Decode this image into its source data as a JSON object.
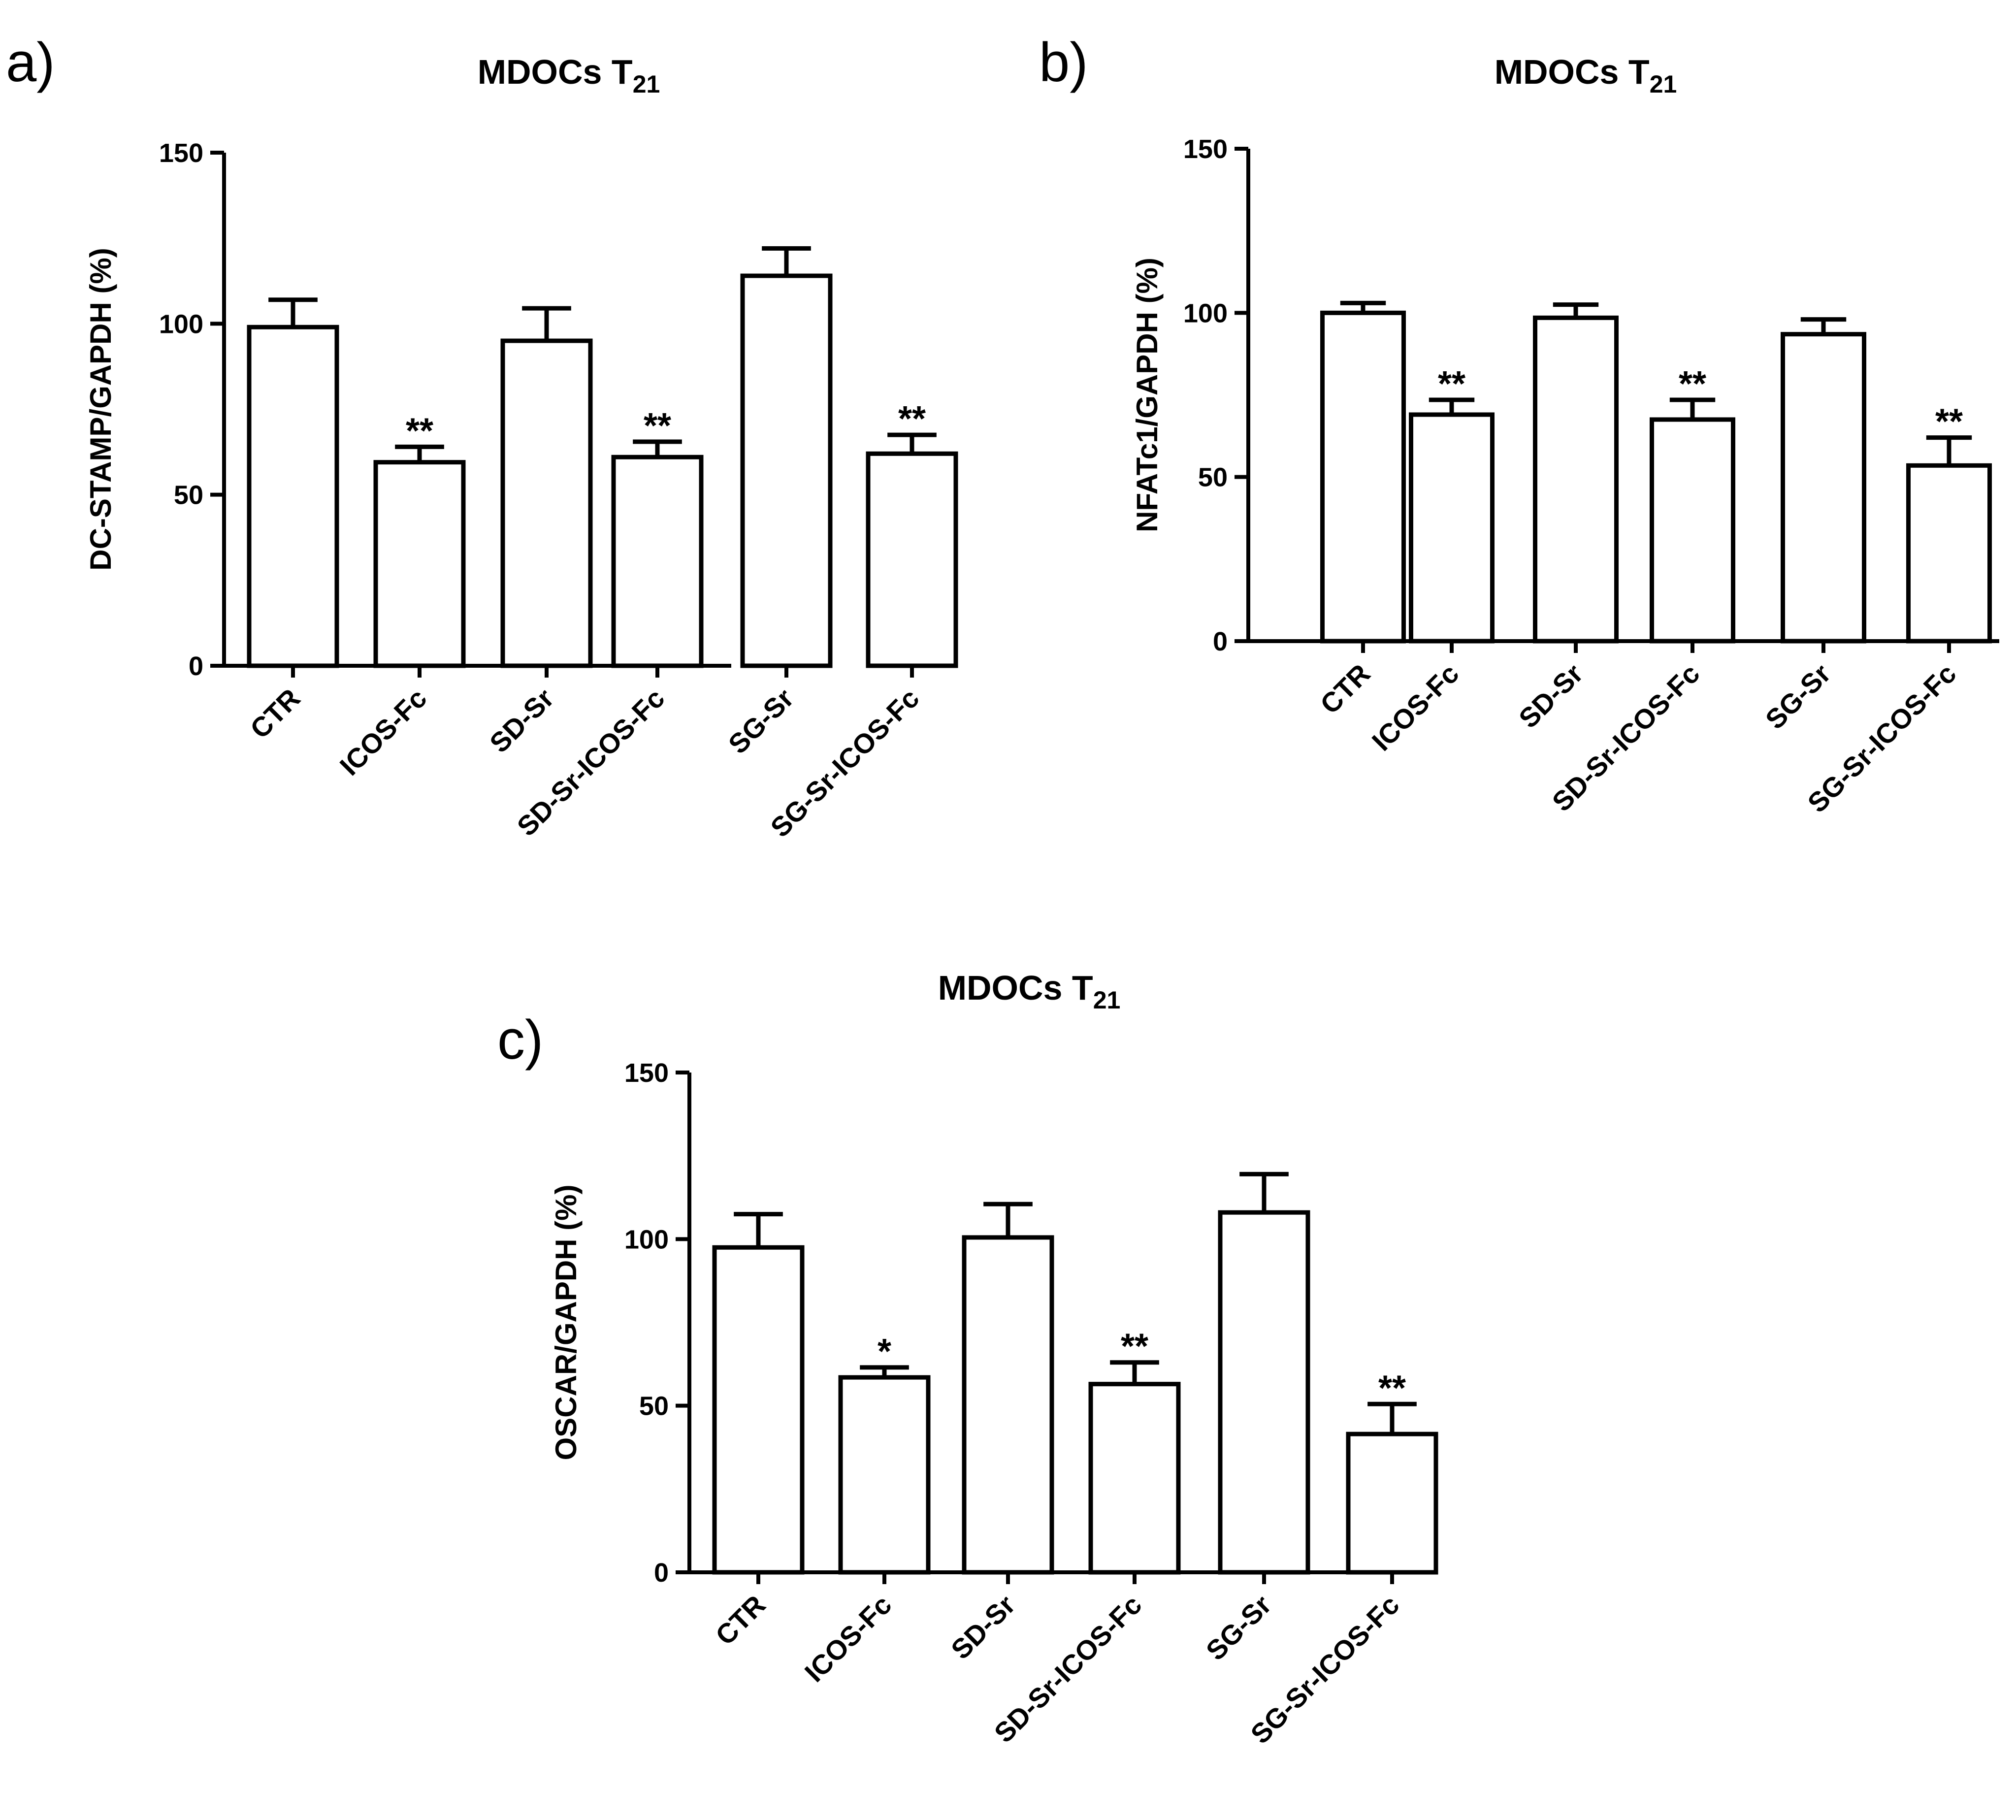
{
  "chart_data": [
    {
      "type": "bar",
      "panel": "a)",
      "title": "MDOCs T",
      "title_sub": "21",
      "ylabel": "DC-STAMP/GAPDH (%)",
      "xlabel": "",
      "ylim": [
        0,
        150
      ],
      "yticks": [
        "0",
        "50",
        "100",
        "150"
      ],
      "categories": [
        "CTR",
        "ICOS-Fc",
        "SD-Sr",
        "SD-Sr-ICOS-Fc",
        "SG-Sr",
        "SG-Sr-ICOS-Fc"
      ],
      "values": [
        99,
        59.5,
        95,
        61,
        114,
        62
      ],
      "errors": [
        8,
        4.5,
        9.5,
        4.5,
        8,
        5.5
      ],
      "significance": [
        "",
        "**",
        "",
        "**",
        "",
        "**"
      ]
    },
    {
      "type": "bar",
      "panel": "b)",
      "title": "MDOCs T",
      "title_sub": "21",
      "ylabel": "NFATc1/GAPDH (%)",
      "xlabel": "",
      "ylim": [
        0,
        150
      ],
      "yticks": [
        "0",
        "50",
        "100",
        "150"
      ],
      "categories": [
        "CTR",
        "ICOS-Fc",
        "SD-Sr",
        "SD-Sr-ICOS-Fc",
        "SG-Sr",
        "SG-Sr-ICOS-Fc"
      ],
      "values": [
        100,
        69,
        98.5,
        67.5,
        93.5,
        53.5
      ],
      "errors": [
        3,
        4.5,
        4,
        6,
        4.5,
        8.5
      ],
      "significance": [
        "",
        "**",
        "",
        "**",
        "",
        "**"
      ]
    },
    {
      "type": "bar",
      "panel": "c)",
      "title": "MDOCs T",
      "title_sub": "21",
      "ylabel": "OSCAR/GAPDH (%)",
      "xlabel": "",
      "ylim": [
        0,
        150
      ],
      "yticks": [
        "0",
        "50",
        "100",
        "150"
      ],
      "categories": [
        "CTR",
        "ICOS-Fc",
        "SD-Sr",
        "SD-Sr-ICOS-Fc",
        "SG-Sr",
        "SG-Sr-ICOS-Fc"
      ],
      "values": [
        97.5,
        58.5,
        100.5,
        56.5,
        108,
        41.5
      ],
      "errors": [
        10,
        3,
        10,
        6.5,
        11.5,
        9
      ],
      "significance": [
        "",
        "*",
        "",
        "**",
        "",
        "**"
      ]
    }
  ]
}
